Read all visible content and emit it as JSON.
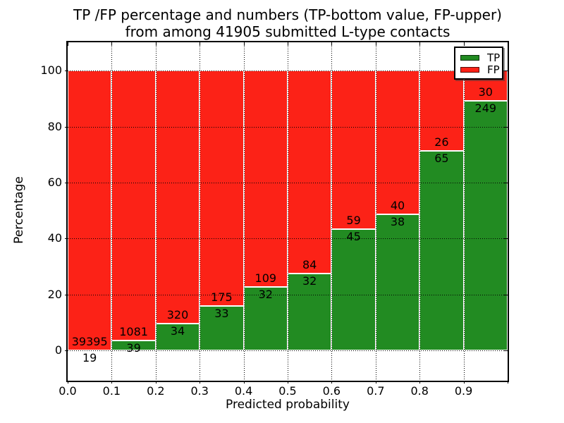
{
  "figure": {
    "title_line1": "TP /FP percentage and numbers (TP-bottom value, FP-upper)",
    "title_line2": "from among 41905 submitted L-type contacts"
  },
  "axes": {
    "xlabel": "Predicted probability",
    "ylabel": "Percentage",
    "x_tick_labels": [
      "0.0",
      "0.1",
      "0.2",
      "0.3",
      "0.4",
      "0.5",
      "0.6",
      "0.7",
      "0.8",
      "0.9"
    ],
    "x_tick_values": [
      0.0,
      0.1,
      0.2,
      0.3,
      0.4,
      0.5,
      0.6,
      0.7,
      0.8,
      0.9
    ],
    "y_tick_labels": [
      "0",
      "20",
      "40",
      "60",
      "80",
      "100"
    ],
    "y_tick_values": [
      0,
      20,
      40,
      60,
      80,
      100
    ],
    "xlim": [
      0.0,
      1.0
    ],
    "ylim": [
      -10.8,
      110.1
    ],
    "grid": "dotted, both axes, drawn above bars"
  },
  "legend": {
    "position": "upper right",
    "items": [
      {
        "label": "TP",
        "color": "#228b22"
      },
      {
        "label": "FP",
        "color": "#fc2217"
      }
    ]
  },
  "chart_data": {
    "type": "bar",
    "stacked": true,
    "normalized_to_percent": true,
    "title": "TP /FP percentage and numbers (TP-bottom value, FP-upper) from among 41905 submitted L-type contacts",
    "xlabel": "Predicted probability",
    "ylabel": "Percentage",
    "bin_edges": [
      0.0,
      0.1,
      0.2,
      0.3,
      0.4,
      0.5,
      0.6,
      0.7,
      0.8,
      0.9,
      1.0
    ],
    "series": [
      {
        "name": "TP",
        "color": "#228b22",
        "counts": [
          19,
          39,
          34,
          33,
          32,
          32,
          45,
          38,
          65,
          249
        ]
      },
      {
        "name": "FP",
        "color": "#fc2217",
        "counts": [
          39395,
          1081,
          320,
          175,
          109,
          84,
          59,
          40,
          26,
          30
        ]
      }
    ],
    "tp_percent": [
      0.05,
      3.48,
      9.6,
      15.87,
      22.7,
      27.59,
      43.27,
      48.72,
      71.43,
      89.25
    ],
    "total_contacts": 41905,
    "annotation_rule": "FP count printed just above TP/FP boundary, TP count just below it"
  }
}
